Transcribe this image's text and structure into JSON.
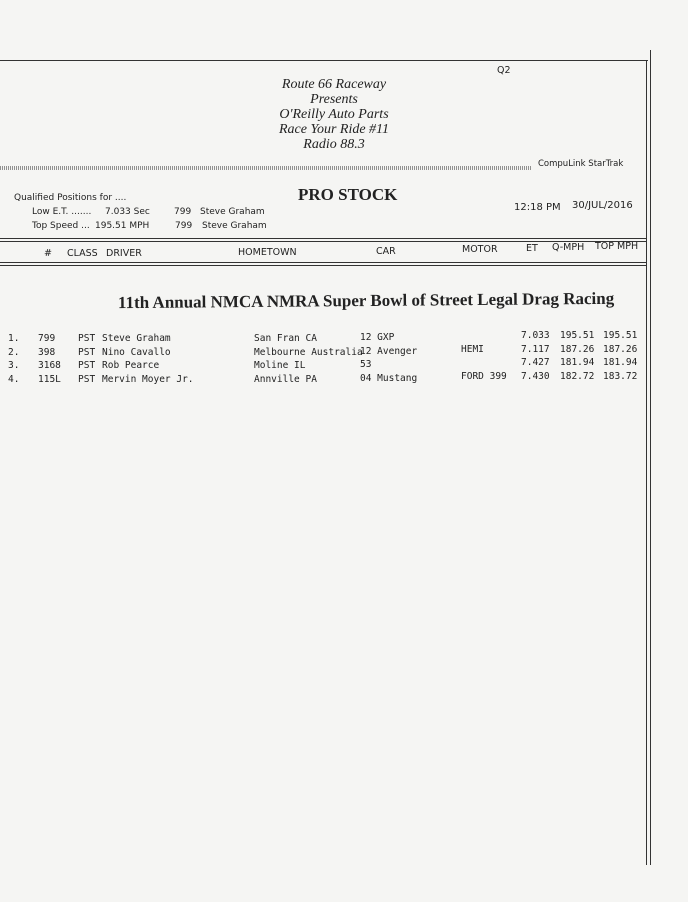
{
  "header": {
    "corner": "Q2",
    "lines": [
      "Route 66 Raceway",
      "Presents",
      "O'Reilly Auto Parts",
      "Race Your Ride #11",
      "Radio 88.3"
    ],
    "brand": "CompuLink  StarTrak"
  },
  "summary": {
    "title": "Qualified Positions for ....",
    "class_title": "PRO STOCK",
    "low_et_label": "Low E.T. .......",
    "low_et_value": "7.033  Sec",
    "low_et_car": "799",
    "low_et_driver": "Steve Graham",
    "top_speed_label": "Top Speed ...",
    "top_speed_value": "195.51  MPH",
    "top_speed_car": "799",
    "top_speed_driver": "Steve Graham",
    "time": "12:18 PM",
    "date": "30/JUL/2016"
  },
  "columns": [
    "#",
    "CLASS",
    "DRIVER",
    "HOMETOWN",
    "CAR",
    "MOTOR",
    "ET",
    "Q-MPH",
    "TOP MPH"
  ],
  "event_title": "11th Annual NMCA NMRA Super Bowl of Street Legal Drag Racing",
  "rows": [
    {
      "pos": "1.",
      "num": "799",
      "cls": "PST",
      "driver": "Steve Graham",
      "hometown": "San Fran CA",
      "car": "12 GXP",
      "motor": "",
      "et": "7.033",
      "qmph": "195.51",
      "top": "195.51"
    },
    {
      "pos": "2.",
      "num": "398",
      "cls": "PST",
      "driver": "Nino Cavallo",
      "hometown": "Melbourne Australia",
      "car": "12 Avenger",
      "motor": "HEMI",
      "et": "7.117",
      "qmph": "187.26",
      "top": "187.26"
    },
    {
      "pos": "3.",
      "num": "3168",
      "cls": "PST",
      "driver": "Rob Pearce",
      "hometown": "Moline IL",
      "car": "53",
      "motor": "",
      "et": "7.427",
      "qmph": "181.94",
      "top": "181.94"
    },
    {
      "pos": "4.",
      "num": "115L",
      "cls": "PST",
      "driver": "Mervin Moyer Jr.",
      "hometown": "Annville PA",
      "car": "04 Mustang",
      "motor": "FORD  399",
      "et": "7.430",
      "qmph": "182.72",
      "top": "183.72"
    }
  ]
}
